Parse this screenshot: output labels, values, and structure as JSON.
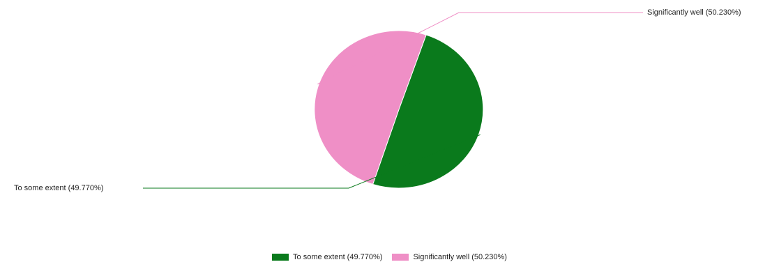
{
  "chart_data": {
    "type": "pie",
    "title": "",
    "slices": [
      {
        "label": "To some extent (49.770%)",
        "value": 49.77,
        "color": "#0a7a1c"
      },
      {
        "label": "Significantly well (50.230%)",
        "value": 50.23,
        "color": "#ef8fc6"
      }
    ],
    "legend_position": "bottom-center"
  }
}
